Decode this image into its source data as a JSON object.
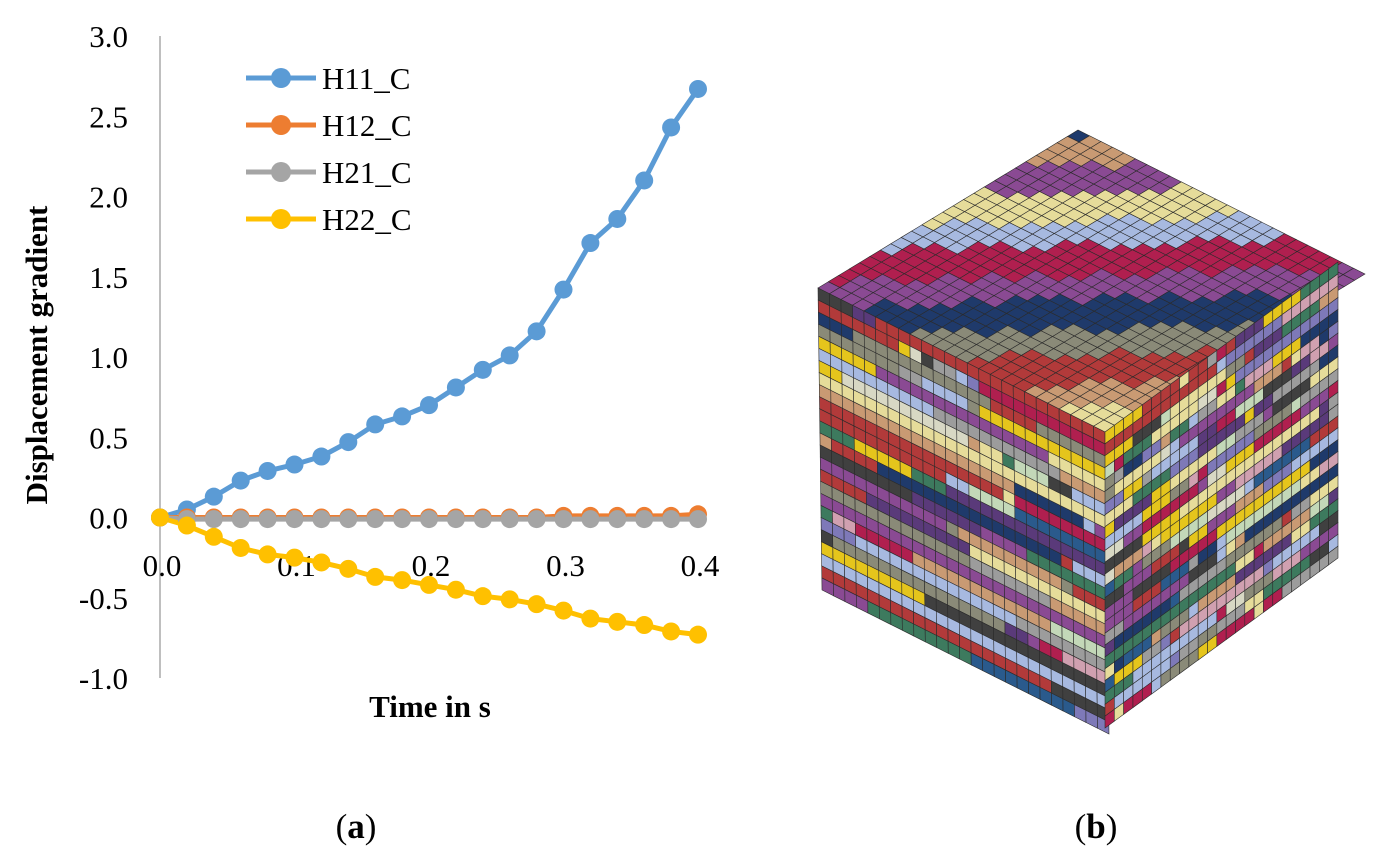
{
  "figure": {
    "panel_a_label_open": "(",
    "panel_a_label_letter": "a",
    "panel_a_label_close": ")",
    "panel_b_label_open": "(",
    "panel_b_label_letter": "b",
    "panel_b_label_close": ")"
  },
  "cube": {
    "description_colors": [
      "#e6dc9a",
      "#c99a73",
      "#b23a3a",
      "#8a8a78",
      "#1f3a6b",
      "#8a4a93",
      "#b01f4f",
      "#a7b9e0",
      "#3d7a5e",
      "#7e79b8",
      "#d8d8c4",
      "#2a5a8c",
      "#e5c51c",
      "#5a3a7a",
      "#d0a0b0",
      "#9c9c9c",
      "#c3d8b8",
      "#404040"
    ]
  },
  "chart_data": {
    "type": "line",
    "title": "",
    "xlabel": "Time in s",
    "ylabel": "Displacement gradient",
    "xlim": [
      0.0,
      0.4
    ],
    "ylim": [
      -1.0,
      3.0
    ],
    "xticks": [
      0.0,
      0.1,
      0.2,
      0.3,
      0.4
    ],
    "xtick_labels": [
      "0.0",
      "0.1",
      "0.2",
      "0.3",
      "0.4"
    ],
    "yticks": [
      3.0,
      2.5,
      2.0,
      1.5,
      1.0,
      0.5,
      0.0,
      -0.5,
      -1.0
    ],
    "ytick_labels": [
      "3.0",
      "2.5",
      "2.0",
      "1.5",
      "1.0",
      "0.5",
      "0.0",
      "-0.5",
      "-1.0"
    ],
    "grid": false,
    "legend_position": "top-left",
    "x": [
      0.0,
      0.02,
      0.04,
      0.06,
      0.08,
      0.1,
      0.12,
      0.14,
      0.16,
      0.18,
      0.2,
      0.22,
      0.24,
      0.26,
      0.28,
      0.3,
      0.32,
      0.34,
      0.36,
      0.38,
      0.4
    ],
    "series": [
      {
        "name": "H11_C",
        "color": "#5b9bd5",
        "values": [
          0.0,
          0.05,
          0.13,
          0.23,
          0.29,
          0.33,
          0.38,
          0.47,
          0.58,
          0.63,
          0.7,
          0.81,
          0.92,
          1.01,
          1.16,
          1.42,
          1.71,
          1.86,
          2.1,
          2.43,
          2.67
        ]
      },
      {
        "name": "H12_C",
        "color": "#ed7d31",
        "values": [
          0.0,
          0.0,
          0.0,
          0.0,
          0.0,
          0.0,
          0.0,
          0.0,
          0.0,
          0.0,
          0.0,
          0.0,
          0.0,
          0.0,
          0.0,
          0.01,
          0.01,
          0.01,
          0.01,
          0.01,
          0.02
        ]
      },
      {
        "name": "H21_C",
        "color": "#a5a5a5",
        "values": [
          0.0,
          -0.01,
          -0.01,
          -0.01,
          -0.01,
          -0.01,
          -0.01,
          -0.01,
          -0.01,
          -0.01,
          -0.01,
          -0.01,
          -0.01,
          -0.01,
          -0.01,
          -0.01,
          -0.01,
          -0.01,
          -0.01,
          -0.01,
          -0.01
        ]
      },
      {
        "name": "H22_C",
        "color": "#ffc000",
        "values": [
          0.0,
          -0.05,
          -0.12,
          -0.19,
          -0.23,
          -0.25,
          -0.28,
          -0.32,
          -0.37,
          -0.39,
          -0.42,
          -0.45,
          -0.49,
          -0.51,
          -0.54,
          -0.58,
          -0.63,
          -0.65,
          -0.67,
          -0.71,
          -0.73
        ]
      }
    ]
  }
}
